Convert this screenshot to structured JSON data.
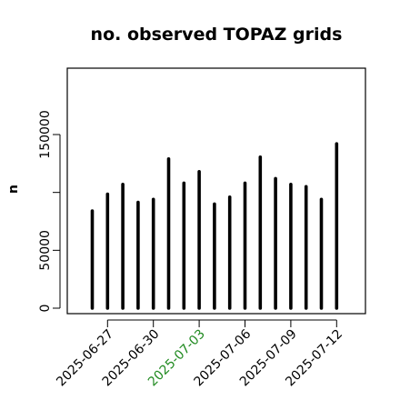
{
  "chart_data": {
    "type": "bar",
    "title": "no. observed TOPAZ grids",
    "xlabel": "",
    "ylabel": "n",
    "ylim": [
      0,
      200000
    ],
    "yticks": [
      0,
      50000,
      100000,
      150000
    ],
    "ytick_labels": [
      "0",
      "50000",
      "",
      "150000"
    ],
    "x_tick_labels": [
      "2025-06-27",
      "2025-06-30",
      "2025-07-03",
      "2025-07-06",
      "2025-07-09",
      "2025-07-12"
    ],
    "x_tick_label_colors": [
      "#000000",
      "#000000",
      "#228b22",
      "#000000",
      "#000000",
      "#000000"
    ],
    "x_tick_positions": [
      "2025-06-27",
      "2025-06-30",
      "2025-07-03",
      "2025-07-06",
      "2025-07-09",
      "2025-07-12"
    ],
    "categories": [
      "2025-06-26",
      "2025-06-27",
      "2025-06-28",
      "2025-06-29",
      "2025-06-30",
      "2025-07-01",
      "2025-07-02",
      "2025-07-03",
      "2025-07-04",
      "2025-07-05",
      "2025-07-06",
      "2025-07-07",
      "2025-07-08",
      "2025-07-09",
      "2025-07-10",
      "2025-07-11",
      "2025-07-12"
    ],
    "values": [
      84000,
      98500,
      107000,
      91500,
      94000,
      129000,
      108000,
      118000,
      90000,
      96000,
      108000,
      130500,
      112000,
      107000,
      105000,
      94000,
      142000
    ],
    "bar_color": "#000000",
    "grid": false
  }
}
